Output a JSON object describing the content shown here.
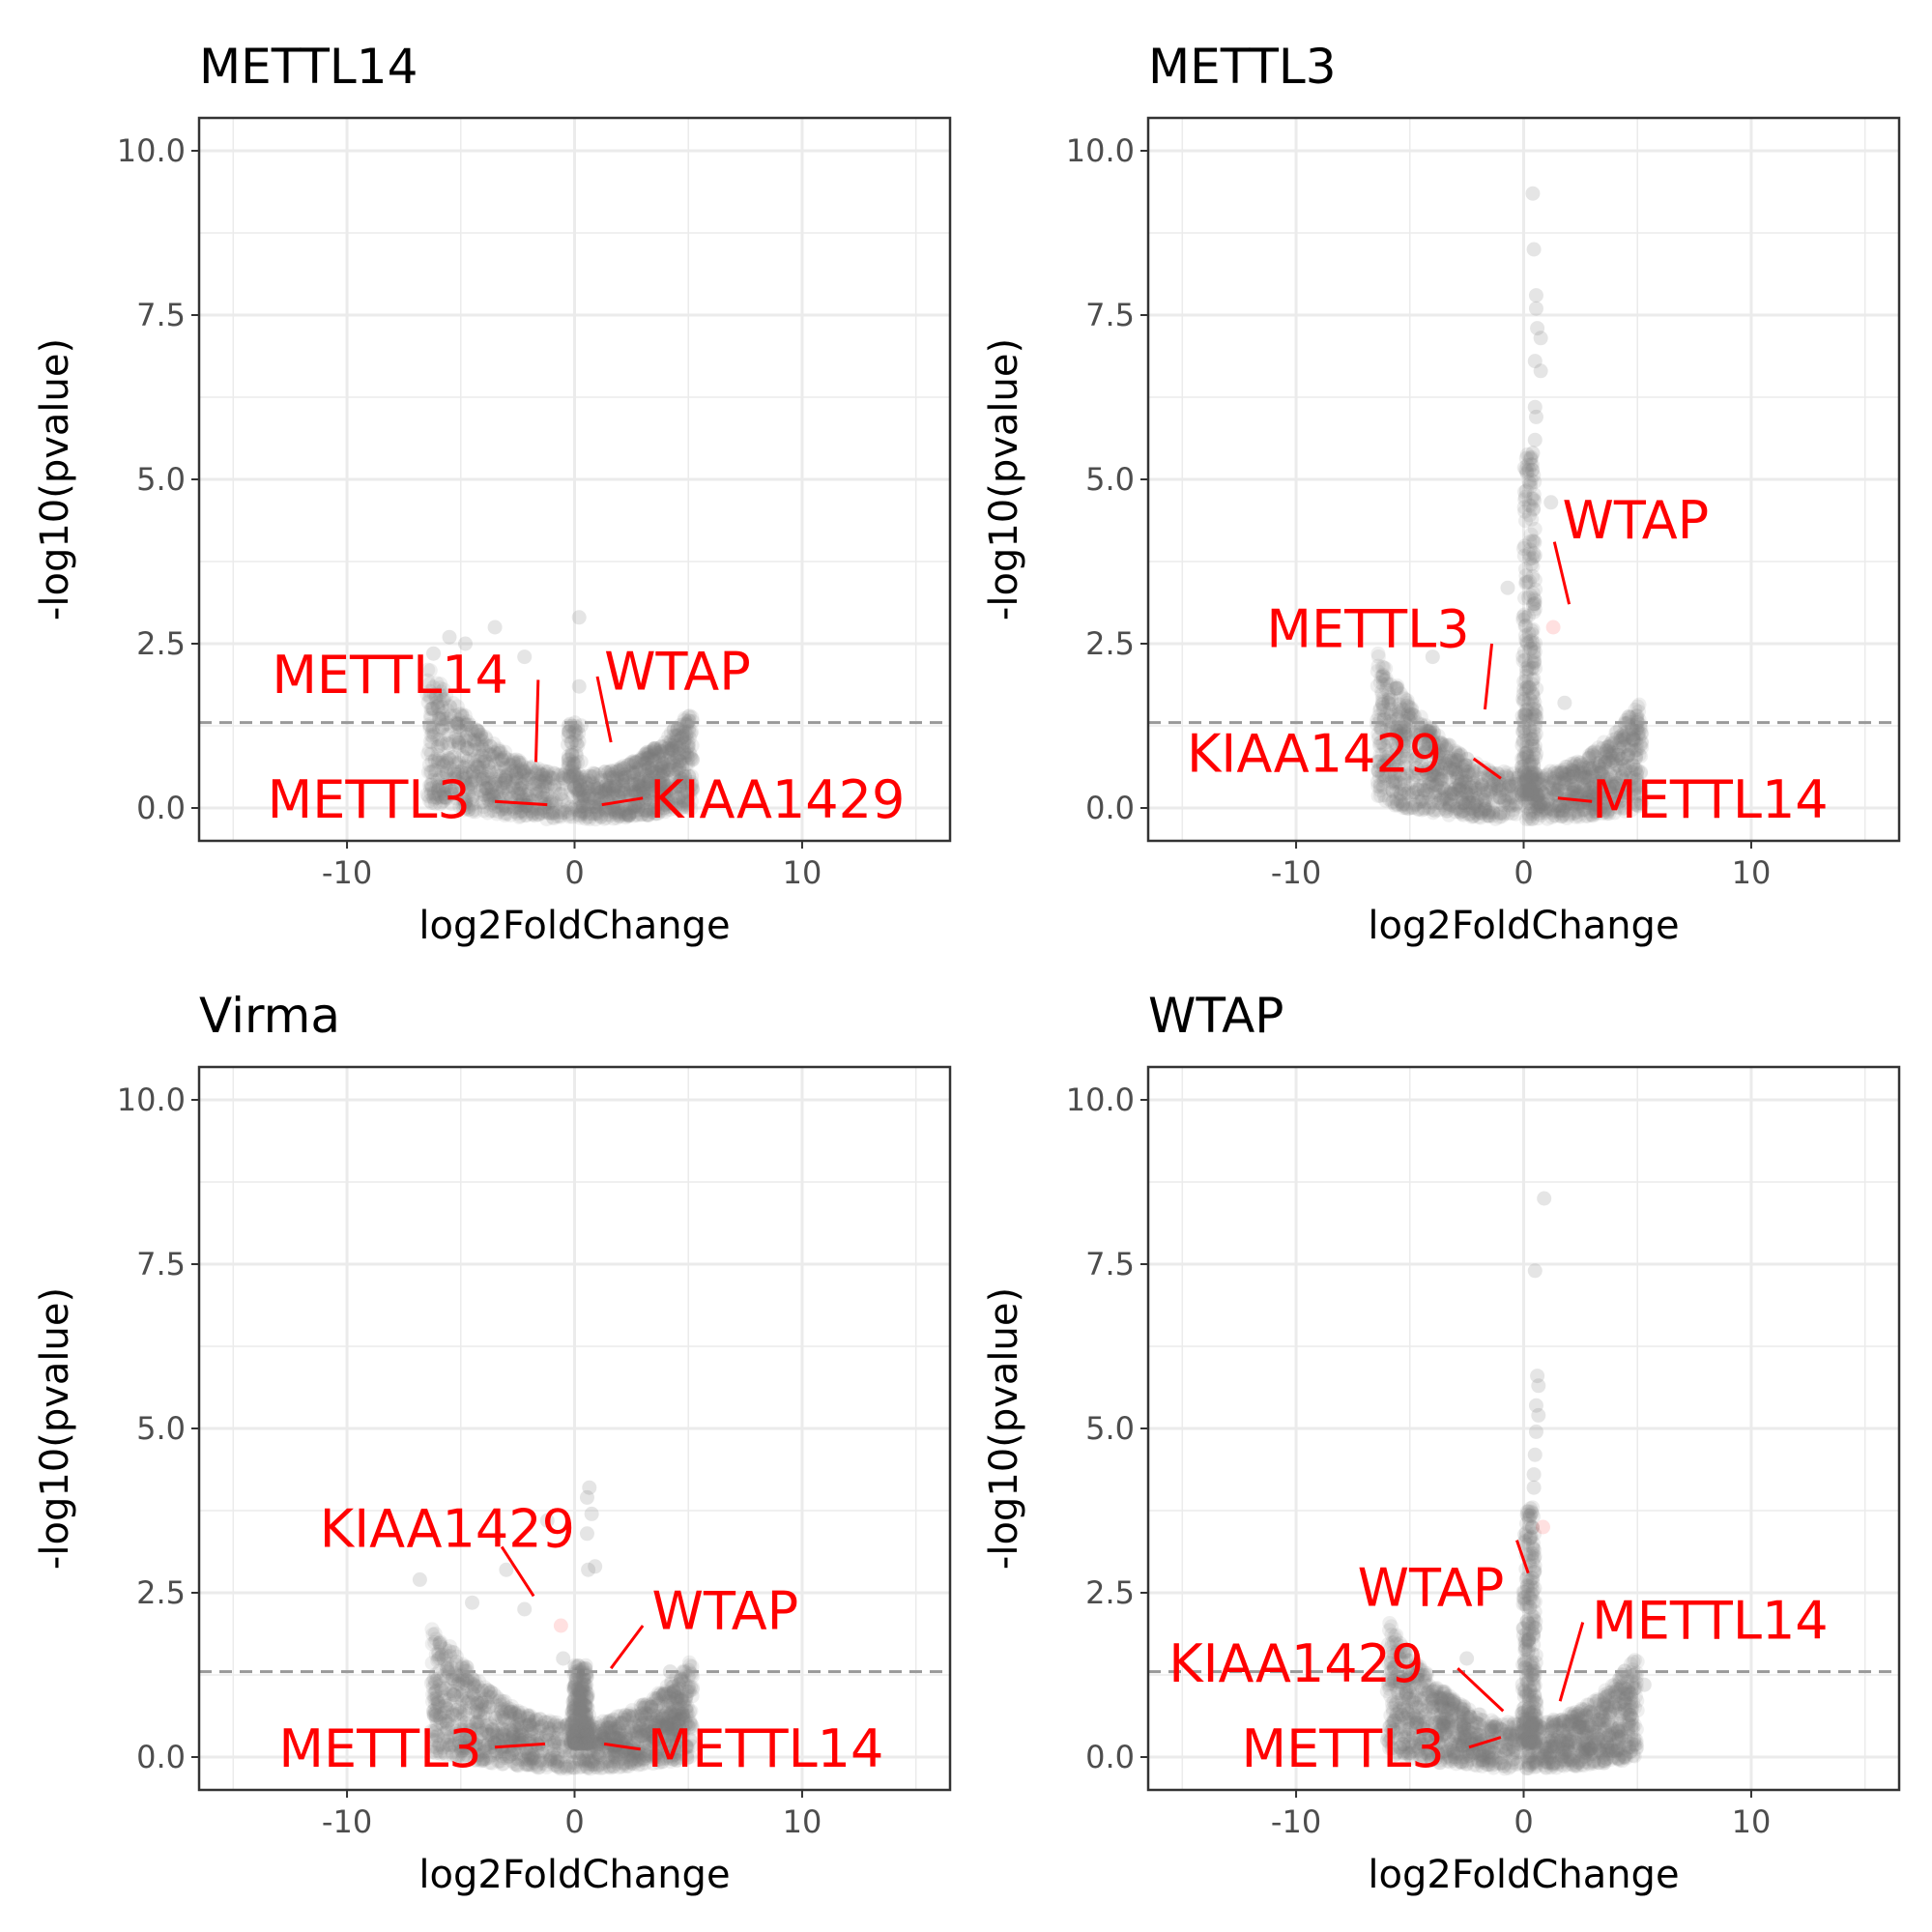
{
  "colors": {
    "points": "#7f7f7f",
    "highlight": "#ff0000",
    "threshold": "#999999",
    "grid": "#ebebeb",
    "frame": "#333333"
  },
  "chart_data": [
    {
      "type": "scatter",
      "title": "METTL14",
      "xlabel": "log2FoldChange",
      "ylabel": "-log10(pvalue)",
      "xlim": [
        -16.5,
        16.5
      ],
      "ylim": [
        -0.5,
        10.5
      ],
      "xticks": [
        -10,
        0,
        10
      ],
      "xtick_labels": [
        "-10",
        "0",
        "10"
      ],
      "yticks": [
        0,
        2.5,
        5,
        7.5,
        10
      ],
      "ytick_labels": [
        "0.0",
        "2.5",
        "5.0",
        "7.5",
        "10.0"
      ],
      "threshold": 1.3,
      "cloud": {
        "left_max_x": -6.5,
        "right_max_x": 5.2,
        "curvature": 0.045
      },
      "spike": {
        "height": 0,
        "width": 0.6
      },
      "outliers": [
        [
          -3.5,
          2.75
        ],
        [
          -5.5,
          2.6
        ],
        [
          0.2,
          2.9
        ],
        [
          0.2,
          1.85
        ],
        [
          -2.2,
          2.3
        ],
        [
          -4.8,
          2.5
        ],
        [
          4.5,
          1.1
        ],
        [
          -6.2,
          2.35
        ]
      ],
      "highlights": [],
      "labels": [
        {
          "gene": "METTL14",
          "x": -1.7,
          "y": 0.7,
          "tx": -13.3,
          "ty": 1.75,
          "lx": -1.6,
          "ly": 1.95
        },
        {
          "gene": "WTAP",
          "x": 1.6,
          "y": 1.0,
          "tx": 1.3,
          "ty": 1.8,
          "lx": 1.0,
          "ly": 2.0
        },
        {
          "gene": "METTL3",
          "x": -1.2,
          "y": 0.05,
          "tx": -13.5,
          "ty": -0.15,
          "lx": -3.5,
          "ly": 0.1
        },
        {
          "gene": "KIAA1429",
          "x": 1.2,
          "y": 0.05,
          "tx": 3.3,
          "ty": -0.15,
          "lx": 3.0,
          "ly": 0.15
        }
      ]
    },
    {
      "type": "scatter",
      "title": "METTL3",
      "xlabel": "log2FoldChange",
      "ylabel": "-log10(pvalue)",
      "xlim": [
        -16.5,
        16.5
      ],
      "ylim": [
        -0.5,
        10.5
      ],
      "xticks": [
        -10,
        0,
        10
      ],
      "xtick_labels": [
        "-10",
        "0",
        "10"
      ],
      "yticks": [
        0,
        2.5,
        5,
        7.5,
        10
      ],
      "ytick_labels": [
        "0.0",
        "2.5",
        "5.0",
        "7.5",
        "10.0"
      ],
      "threshold": 1.3,
      "cloud": {
        "left_max_x": -6.5,
        "right_max_x": 5.2,
        "curvature": 0.05
      },
      "spike": {
        "height": 5.2,
        "width": 0.45
      },
      "outliers": [
        [
          0.4,
          9.35
        ],
        [
          0.45,
          8.5
        ],
        [
          0.55,
          7.8
        ],
        [
          0.55,
          7.6
        ],
        [
          0.6,
          7.3
        ],
        [
          0.75,
          7.15
        ],
        [
          0.5,
          6.8
        ],
        [
          0.75,
          6.65
        ],
        [
          0.5,
          6.1
        ],
        [
          0.55,
          5.95
        ],
        [
          0.5,
          5.6
        ],
        [
          0.4,
          5.4
        ],
        [
          1.2,
          4.65
        ],
        [
          -0.7,
          3.35
        ],
        [
          1.8,
          1.6
        ],
        [
          5.0,
          1.3
        ],
        [
          -4.0,
          2.3
        ]
      ],
      "highlights": [
        [
          1.3,
          2.75
        ]
      ],
      "labels": [
        {
          "gene": "WTAP",
          "x": 2.0,
          "y": 3.1,
          "tx": 1.7,
          "ty": 4.1,
          "lx": 1.35,
          "ly": 4.05
        },
        {
          "gene": "METTL3",
          "x": -1.7,
          "y": 1.5,
          "tx": -11.3,
          "ty": 2.45,
          "lx": -1.4,
          "ly": 2.5
        },
        {
          "gene": "KIAA1429",
          "x": -1.0,
          "y": 0.45,
          "tx": -14.8,
          "ty": 0.55,
          "lx": -2.2,
          "ly": 0.75
        },
        {
          "gene": "METTL14",
          "x": 1.5,
          "y": 0.15,
          "tx": 3.0,
          "ty": -0.15,
          "lx": 3.0,
          "ly": 0.1
        }
      ]
    },
    {
      "type": "scatter",
      "title": "Virma",
      "xlabel": "log2FoldChange",
      "ylabel": "-log10(pvalue)",
      "xlim": [
        -16.5,
        16.5
      ],
      "ylim": [
        -0.5,
        10.5
      ],
      "xticks": [
        -10,
        0,
        10
      ],
      "xtick_labels": [
        "-10",
        "0",
        "10"
      ],
      "yticks": [
        0,
        2.5,
        5,
        7.5,
        10
      ],
      "ytick_labels": [
        "0.0",
        "2.5",
        "5.0",
        "7.5",
        "10.0"
      ],
      "threshold": 1.3,
      "cloud": {
        "left_max_x": -6.3,
        "right_max_x": 5.2,
        "curvature": 0.045
      },
      "spike": {
        "height": 1.2,
        "width": 0.6
      },
      "outliers": [
        [
          0.65,
          4.1
        ],
        [
          0.55,
          3.95
        ],
        [
          0.75,
          3.7
        ],
        [
          0.55,
          3.4
        ],
        [
          -1.2,
          3.6
        ],
        [
          0.6,
          2.85
        ],
        [
          0.9,
          2.9
        ],
        [
          -3.0,
          2.85
        ],
        [
          -6.8,
          2.7
        ],
        [
          -4.5,
          2.35
        ],
        [
          -2.2,
          2.25
        ],
        [
          -0.5,
          1.5
        ],
        [
          -6.2,
          0.7
        ],
        [
          4.5,
          0.9
        ],
        [
          4.2,
          1.3
        ]
      ],
      "highlights": [
        [
          -0.6,
          2.0
        ]
      ],
      "labels": [
        {
          "gene": "KIAA1429",
          "x": -1.8,
          "y": 2.45,
          "tx": -11.2,
          "ty": 3.2,
          "lx": -3.2,
          "ly": 3.2
        },
        {
          "gene": "WTAP",
          "x": 1.6,
          "y": 1.35,
          "tx": 3.4,
          "ty": 1.95,
          "lx": 3.0,
          "ly": 2.0
        },
        {
          "gene": "METTL3",
          "x": -1.3,
          "y": 0.2,
          "tx": -13.0,
          "ty": -0.15,
          "lx": -3.5,
          "ly": 0.15
        },
        {
          "gene": "METTL14",
          "x": 1.3,
          "y": 0.2,
          "tx": 3.2,
          "ty": -0.15,
          "lx": 2.9,
          "ly": 0.12
        }
      ]
    },
    {
      "type": "scatter",
      "title": "WTAP",
      "xlabel": "log2FoldChange",
      "ylabel": "-log10(pvalue)",
      "xlim": [
        -16.5,
        16.5
      ],
      "ylim": [
        -0.5,
        10.5
      ],
      "xticks": [
        -10,
        0,
        10
      ],
      "xtick_labels": [
        "-10",
        "0",
        "10"
      ],
      "yticks": [
        0,
        2.5,
        5,
        7.5,
        10
      ],
      "ytick_labels": [
        "0.0",
        "2.5",
        "5.0",
        "7.5",
        "10.0"
      ],
      "threshold": 1.3,
      "cloud": {
        "left_max_x": -6.0,
        "right_max_x": 5.0,
        "curvature": 0.05
      },
      "spike": {
        "height": 3.6,
        "width": 0.45
      },
      "outliers": [
        [
          0.9,
          8.5
        ],
        [
          0.5,
          7.4
        ],
        [
          0.6,
          5.8
        ],
        [
          0.65,
          5.65
        ],
        [
          0.55,
          5.35
        ],
        [
          0.65,
          5.2
        ],
        [
          0.55,
          4.95
        ],
        [
          0.5,
          4.6
        ],
        [
          0.45,
          4.3
        ],
        [
          0.45,
          4.1
        ],
        [
          5.3,
          1.1
        ],
        [
          -2.5,
          1.5
        ]
      ],
      "highlights": [
        [
          0.85,
          3.5
        ]
      ],
      "labels": [
        {
          "gene": "WTAP",
          "x": 0.2,
          "y": 2.8,
          "tx": -7.3,
          "ty": 2.3,
          "lx": -0.3,
          "ly": 3.3
        },
        {
          "gene": "METTL14",
          "x": 1.6,
          "y": 0.85,
          "tx": 3.0,
          "ty": 1.8,
          "lx": 2.6,
          "ly": 2.05
        },
        {
          "gene": "KIAA1429",
          "x": -0.9,
          "y": 0.7,
          "tx": -15.6,
          "ty": 1.15,
          "lx": -2.9,
          "ly": 1.35
        },
        {
          "gene": "METTL3",
          "x": -1.0,
          "y": 0.3,
          "tx": -12.4,
          "ty": -0.15,
          "lx": -2.4,
          "ly": 0.15
        }
      ]
    }
  ]
}
